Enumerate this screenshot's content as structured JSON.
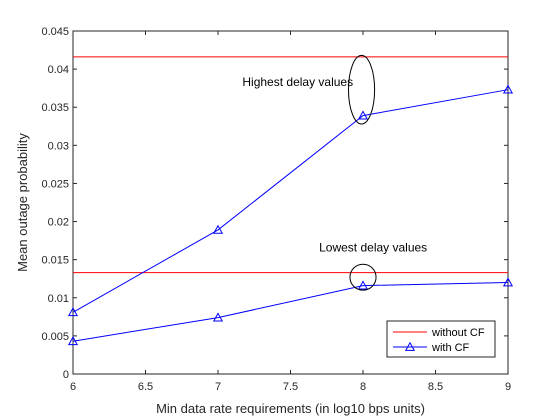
{
  "chart_data": {
    "type": "line",
    "xlabel": "Min data rate requirements (in log10 bps units)",
    "ylabel": "Mean outage probability",
    "xlim": [
      6,
      9
    ],
    "ylim": [
      0,
      0.045
    ],
    "xticks": [
      6,
      6.5,
      7,
      7.5,
      8,
      8.5,
      9
    ],
    "xtick_labels": [
      "6",
      "6.5",
      "7",
      "7.5",
      "8",
      "8.5",
      "9"
    ],
    "yticks": [
      0,
      0.005,
      0.01,
      0.015,
      0.02,
      0.025,
      0.03,
      0.035,
      0.04,
      0.045
    ],
    "ytick_labels": [
      "0",
      "0.005",
      "0.01",
      "0.015",
      "0.02",
      "0.025",
      "0.03",
      "0.035",
      "0.04",
      "0.045"
    ],
    "grid": false,
    "legend_position": "bottom-right",
    "series": [
      {
        "name": "without CF",
        "color": "#ff0000",
        "marker": "none",
        "x": [
          6,
          9
        ],
        "y": [
          0.0416,
          0.0416
        ]
      },
      {
        "name": "",
        "color": "#ff0000",
        "marker": "none",
        "x": [
          6,
          9
        ],
        "y": [
          0.0133,
          0.0133
        ]
      },
      {
        "name": "with CF",
        "color": "#0000ff",
        "marker": "triangle",
        "x": [
          6,
          7,
          8,
          9
        ],
        "y": [
          0.0081,
          0.0189,
          0.0339,
          0.0373
        ]
      },
      {
        "name": "",
        "color": "#0000ff",
        "marker": "triangle",
        "x": [
          6,
          7,
          8,
          9
        ],
        "y": [
          0.0043,
          0.0074,
          0.0116,
          0.012
        ]
      }
    ],
    "legend": [
      {
        "label": "without CF",
        "color": "#ff0000",
        "marker": "none"
      },
      {
        "label": "with CF",
        "color": "#0000ff",
        "marker": "triangle"
      }
    ],
    "annotations": [
      {
        "text": "Highest delay values",
        "x": 7.55,
        "y": 0.0378,
        "ellipse": {
          "cx": 7.99,
          "cy": 0.0373,
          "rx": 0.09,
          "ry": 0.0045
        }
      },
      {
        "text": "Lowest delay values",
        "x": 8.07,
        "y": 0.0161,
        "ellipse": {
          "cx": 8.0,
          "cy": 0.0127,
          "rx": 0.09,
          "ry": 0.0017
        }
      }
    ]
  }
}
